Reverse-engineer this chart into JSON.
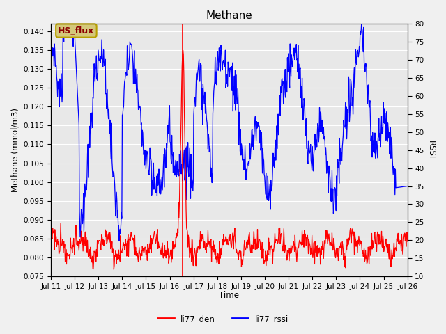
{
  "title": "Methane",
  "ylabel_left": "Methane (mmol/m3)",
  "ylabel_right": "RSSI",
  "xlabel": "Time",
  "ylim_left": [
    0.075,
    0.142
  ],
  "ylim_right": [
    10,
    80
  ],
  "background_color": "#f0f0f0",
  "plot_bg_color": "#e8e8e8",
  "grid_color": "#ffffff",
  "annotation_text": "HS_flux",
  "annotation_color": "#8B0000",
  "annotation_bg": "#d4c87a",
  "annotation_edge": "#b8a000",
  "line1_color": "#ff0000",
  "line2_color": "#0000ff",
  "legend_labels": [
    "li77_den",
    "li77_rssi"
  ],
  "x_tick_labels": [
    "Jul 11",
    "Jul 12",
    "Jul 13",
    "Jul 14",
    "Jul 15",
    "Jul 16",
    "Jul 17",
    "Jul 18",
    "Jul 19",
    "Jul 20",
    "Jul 21",
    "Jul 22",
    "Jul 23",
    "Jul 24",
    "Jul 25",
    "Jul 26"
  ],
  "vline_x": 5.55,
  "vline_color": "#ff0000",
  "left_ticks": [
    0.075,
    0.08,
    0.085,
    0.09,
    0.095,
    0.1,
    0.105,
    0.11,
    0.115,
    0.12,
    0.125,
    0.13,
    0.135,
    0.14
  ],
  "right_ticks": [
    10,
    15,
    20,
    25,
    30,
    35,
    40,
    45,
    50,
    55,
    60,
    65,
    70,
    75,
    80
  ]
}
